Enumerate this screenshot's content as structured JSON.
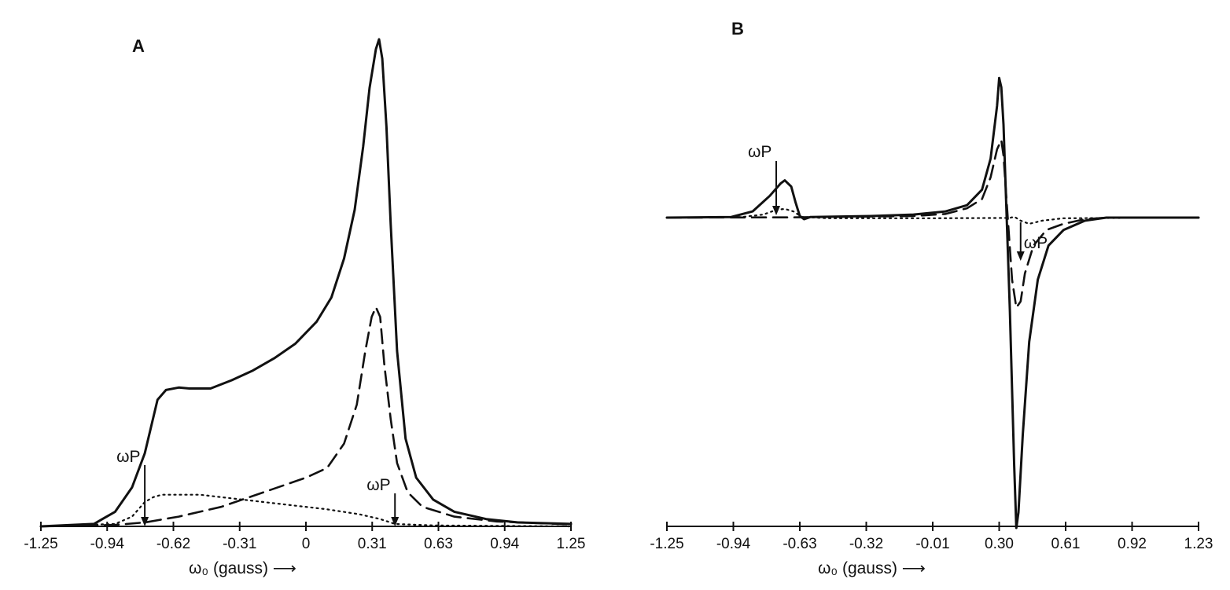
{
  "chart_data": [
    {
      "type": "line",
      "panel_label": "A",
      "xlabel": "ω₀ (gauss) ⟶",
      "xlim": [
        -1.25,
        1.25
      ],
      "tick_labels": [
        "-1.25",
        "-0.94",
        "-0.62",
        "-0.31",
        "0",
        "0.31",
        "0.63",
        "0.94",
        "1.25"
      ],
      "grid": false,
      "legend": "none",
      "annotations": [
        {
          "text": "ωP",
          "x": -0.76
        },
        {
          "text": "ωP",
          "x": 0.42
        }
      ],
      "series": [
        {
          "style": "solid",
          "points": [
            [
              -1.25,
              0
            ],
            [
              -1.0,
              0.005
            ],
            [
              -0.9,
              0.03
            ],
            [
              -0.82,
              0.08
            ],
            [
              -0.76,
              0.15
            ],
            [
              -0.7,
              0.26
            ],
            [
              -0.66,
              0.28
            ],
            [
              -0.6,
              0.285
            ],
            [
              -0.55,
              0.283
            ],
            [
              -0.45,
              0.283
            ],
            [
              -0.35,
              0.3
            ],
            [
              -0.25,
              0.32
            ],
            [
              -0.15,
              0.345
            ],
            [
              -0.05,
              0.375
            ],
            [
              0.05,
              0.42
            ],
            [
              0.12,
              0.47
            ],
            [
              0.18,
              0.55
            ],
            [
              0.23,
              0.65
            ],
            [
              0.27,
              0.78
            ],
            [
              0.3,
              0.9
            ],
            [
              0.33,
              0.98
            ],
            [
              0.345,
              1.0
            ],
            [
              0.36,
              0.96
            ],
            [
              0.38,
              0.82
            ],
            [
              0.4,
              0.62
            ],
            [
              0.43,
              0.36
            ],
            [
              0.47,
              0.18
            ],
            [
              0.52,
              0.1
            ],
            [
              0.6,
              0.055
            ],
            [
              0.7,
              0.03
            ],
            [
              0.85,
              0.015
            ],
            [
              1.0,
              0.008
            ],
            [
              1.25,
              0.005
            ]
          ]
        },
        {
          "style": "dashed",
          "points": [
            [
              -1.25,
              0
            ],
            [
              -0.9,
              0.003
            ],
            [
              -0.76,
              0.008
            ],
            [
              -0.6,
              0.02
            ],
            [
              -0.4,
              0.04
            ],
            [
              -0.2,
              0.07
            ],
            [
              0.0,
              0.1
            ],
            [
              0.1,
              0.12
            ],
            [
              0.18,
              0.17
            ],
            [
              0.24,
              0.25
            ],
            [
              0.28,
              0.36
            ],
            [
              0.31,
              0.43
            ],
            [
              0.33,
              0.45
            ],
            [
              0.35,
              0.43
            ],
            [
              0.37,
              0.33
            ],
            [
              0.4,
              0.22
            ],
            [
              0.43,
              0.13
            ],
            [
              0.48,
              0.07
            ],
            [
              0.55,
              0.04
            ],
            [
              0.7,
              0.02
            ],
            [
              0.9,
              0.01
            ],
            [
              1.25,
              0.004
            ]
          ]
        },
        {
          "style": "dotted",
          "points": [
            [
              -1.25,
              0
            ],
            [
              -0.9,
              0.005
            ],
            [
              -0.82,
              0.02
            ],
            [
              -0.76,
              0.05
            ],
            [
              -0.72,
              0.06
            ],
            [
              -0.68,
              0.065
            ],
            [
              -0.5,
              0.065
            ],
            [
              -0.3,
              0.055
            ],
            [
              -0.1,
              0.045
            ],
            [
              0.1,
              0.035
            ],
            [
              0.25,
              0.025
            ],
            [
              0.35,
              0.015
            ],
            [
              0.42,
              0.005
            ],
            [
              0.6,
              0.002
            ],
            [
              1.25,
              0
            ]
          ]
        }
      ]
    },
    {
      "type": "line",
      "panel_label": "B",
      "xlabel": "ω₀ (gauss) ⟶",
      "xlim": [
        -1.25,
        1.23
      ],
      "tick_labels": [
        "-1.25",
        "-0.94",
        "-0.63",
        "-0.32",
        "-0.01",
        "0.30",
        "0.61",
        "0.92",
        "1.23"
      ],
      "grid": false,
      "legend": "none",
      "annotations": [
        {
          "text": "ωP",
          "x": -0.74
        },
        {
          "text": "ωP",
          "x": 0.4
        }
      ],
      "series": [
        {
          "style": "solid",
          "points": [
            [
              -1.25,
              0
            ],
            [
              -0.95,
              0.002
            ],
            [
              -0.85,
              0.02
            ],
            [
              -0.77,
              0.07
            ],
            [
              -0.72,
              0.11
            ],
            [
              -0.7,
              0.12
            ],
            [
              -0.67,
              0.1
            ],
            [
              -0.65,
              0.05
            ],
            [
              -0.63,
              0.005
            ],
            [
              -0.61,
              -0.005
            ],
            [
              -0.58,
              0.002
            ],
            [
              -0.3,
              0.005
            ],
            [
              -0.1,
              0.01
            ],
            [
              0.05,
              0.02
            ],
            [
              0.15,
              0.04
            ],
            [
              0.22,
              0.09
            ],
            [
              0.26,
              0.19
            ],
            [
              0.29,
              0.36
            ],
            [
              0.3,
              0.45
            ],
            [
              0.31,
              0.42
            ],
            [
              0.32,
              0.3
            ],
            [
              0.33,
              0.1
            ],
            [
              0.35,
              -0.3
            ],
            [
              0.37,
              -0.8
            ],
            [
              0.38,
              -1.0
            ],
            [
              0.39,
              -0.95
            ],
            [
              0.41,
              -0.7
            ],
            [
              0.44,
              -0.4
            ],
            [
              0.48,
              -0.2
            ],
            [
              0.53,
              -0.09
            ],
            [
              0.6,
              -0.04
            ],
            [
              0.7,
              -0.01
            ],
            [
              0.8,
              0.0
            ],
            [
              1.23,
              0
            ]
          ]
        },
        {
          "style": "dashed",
          "points": [
            [
              -1.25,
              0
            ],
            [
              -0.63,
              0.001
            ],
            [
              -0.1,
              0.005
            ],
            [
              0.05,
              0.012
            ],
            [
              0.15,
              0.03
            ],
            [
              0.22,
              0.06
            ],
            [
              0.26,
              0.13
            ],
            [
              0.29,
              0.22
            ],
            [
              0.31,
              0.25
            ],
            [
              0.32,
              0.2
            ],
            [
              0.34,
              0.0
            ],
            [
              0.36,
              -0.2
            ],
            [
              0.38,
              -0.29
            ],
            [
              0.4,
              -0.27
            ],
            [
              0.42,
              -0.18
            ],
            [
              0.46,
              -0.09
            ],
            [
              0.52,
              -0.04
            ],
            [
              0.6,
              -0.02
            ],
            [
              0.7,
              -0.005
            ],
            [
              0.8,
              0.0
            ],
            [
              1.23,
              0
            ]
          ]
        },
        {
          "style": "dotted",
          "points": [
            [
              -1.25,
              0
            ],
            [
              -0.9,
              0.002
            ],
            [
              -0.8,
              0.01
            ],
            [
              -0.74,
              0.025
            ],
            [
              -0.7,
              0.028
            ],
            [
              -0.66,
              0.02
            ],
            [
              -0.62,
              0.002
            ],
            [
              -0.5,
              -0.002
            ],
            [
              0.0,
              -0.002
            ],
            [
              0.35,
              -0.001
            ],
            [
              0.37,
              0.003
            ],
            [
              0.4,
              -0.01
            ],
            [
              0.44,
              -0.02
            ],
            [
              0.5,
              -0.01
            ],
            [
              0.6,
              -0.002
            ],
            [
              1.23,
              0
            ]
          ]
        }
      ]
    }
  ]
}
